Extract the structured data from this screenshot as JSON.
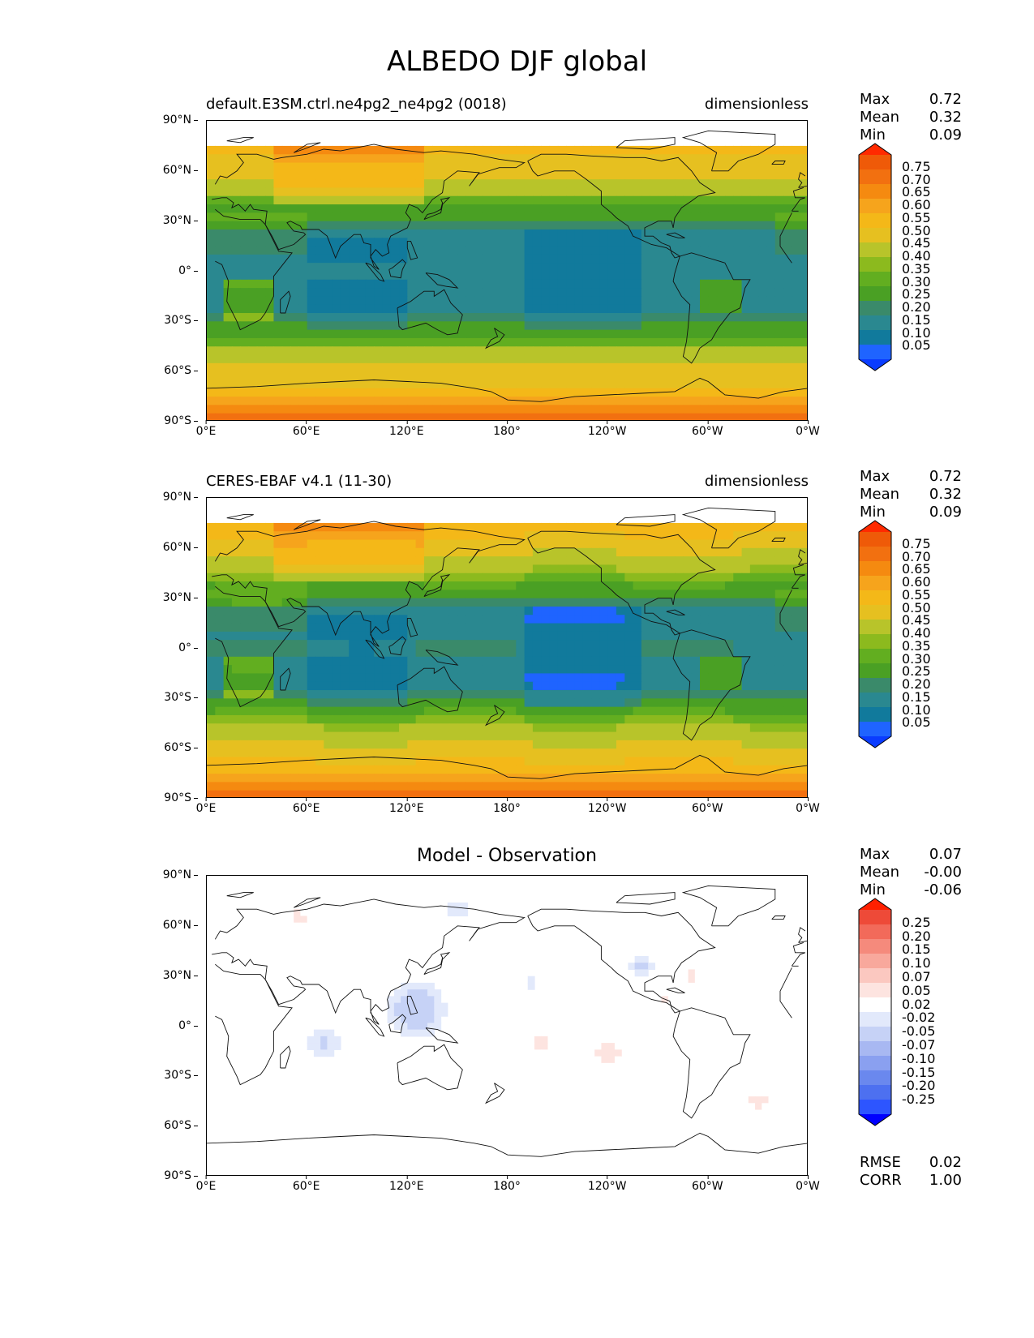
{
  "figure": {
    "title": "ALBEDO DJF global"
  },
  "axes": {
    "yticks": [
      "90°N",
      "60°N",
      "30°N",
      "0°",
      "30°S",
      "60°S",
      "90°S"
    ],
    "xticks": [
      "0°E",
      "60°E",
      "120°E",
      "180°",
      "120°W",
      "60°W",
      "0°W"
    ]
  },
  "panels": [
    {
      "id": "model",
      "left_title": "default.E3SM.ctrl.ne4pg2_ne4pg2 (0018)",
      "right_title": "dimensionless",
      "center_title": "",
      "stats": [
        {
          "label": "Max",
          "value": "0.72"
        },
        {
          "label": "Mean",
          "value": "0.32"
        },
        {
          "label": "Min",
          "value": "0.09"
        }
      ],
      "colorbar_labels": [
        "0.75",
        "0.70",
        "0.65",
        "0.60",
        "0.55",
        "0.50",
        "0.45",
        "0.40",
        "0.35",
        "0.30",
        "0.25",
        "0.20",
        "0.15",
        "0.10",
        "0.05"
      ],
      "extra_stats": []
    },
    {
      "id": "obs",
      "left_title": "CERES-EBAF v4.1 (11-30)",
      "right_title": "dimensionless",
      "center_title": "",
      "stats": [
        {
          "label": "Max",
          "value": "0.72"
        },
        {
          "label": "Mean",
          "value": "0.32"
        },
        {
          "label": "Min",
          "value": "0.09"
        }
      ],
      "colorbar_labels": [
        "0.75",
        "0.70",
        "0.65",
        "0.60",
        "0.55",
        "0.50",
        "0.45",
        "0.40",
        "0.35",
        "0.30",
        "0.25",
        "0.20",
        "0.15",
        "0.10",
        "0.05"
      ],
      "extra_stats": []
    },
    {
      "id": "diff",
      "left_title": "",
      "right_title": "",
      "center_title": "Model - Observation",
      "stats": [
        {
          "label": "Max",
          "value": "0.07"
        },
        {
          "label": "Mean",
          "value": "-0.00"
        },
        {
          "label": "Min",
          "value": "-0.06"
        }
      ],
      "colorbar_labels": [
        "0.25",
        "0.20",
        "0.15",
        "0.10",
        "0.07",
        "0.05",
        "0.02",
        "-0.02",
        "-0.05",
        "-0.07",
        "-0.10",
        "-0.15",
        "-0.20",
        "-0.25"
      ],
      "extra_stats": [
        {
          "label": "RMSE",
          "value": "0.02"
        },
        {
          "label": "CORR",
          "value": "1.00"
        }
      ]
    }
  ],
  "colors": {
    "albedo_scale": [
      "#0a3cff",
      "#1f64ff",
      "#117a9c",
      "#2a8890",
      "#3a8a6a",
      "#4aa024",
      "#62ae20",
      "#8cba1e",
      "#b8c42a",
      "#e6c020",
      "#f4b818",
      "#f6a41c",
      "#f58a10",
      "#f27010",
      "#ef5a08",
      "#ff2a00"
    ],
    "diff_scale": [
      "#0000ff",
      "#2d55ff",
      "#4d70f0",
      "#6a88ee",
      "#8aa0f0",
      "#a8b8f2",
      "#c6d2f6",
      "#e2e9fb",
      "#ffffff",
      "#fde4e0",
      "#fbc8c0",
      "#f8a89c",
      "#f58a7c",
      "#f26a5a",
      "#ee4a38",
      "#ff2000"
    ],
    "coast": "#111111"
  }
}
